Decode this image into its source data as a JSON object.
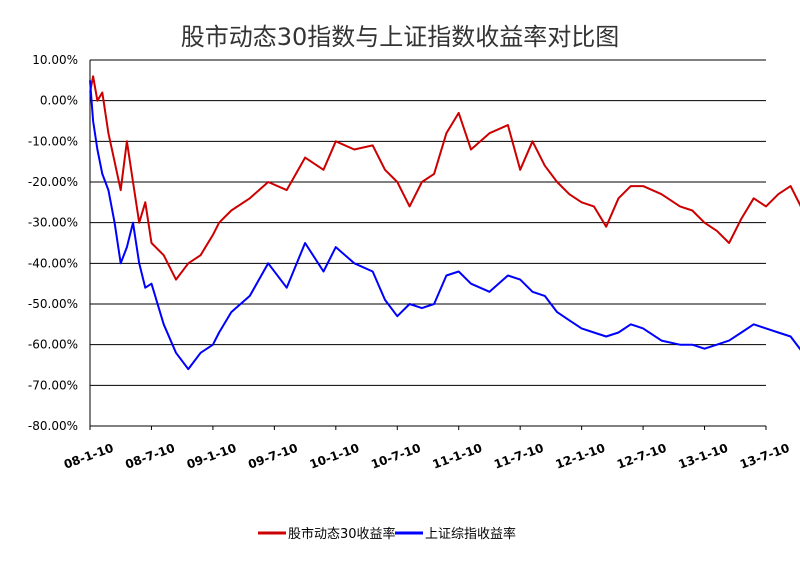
{
  "chart_data": {
    "type": "line",
    "title": "股市动态30指数与上证指数收益率对比图",
    "xlabel": "",
    "ylabel": "",
    "y_ticks": [
      "10.00%",
      "0.00%",
      "-10.00%",
      "-20.00%",
      "-30.00%",
      "-40.00%",
      "-50.00%",
      "-60.00%",
      "-70.00%",
      "-80.00%"
    ],
    "ylim": [
      -80,
      10
    ],
    "x_ticks": [
      "08-1-10",
      "08-7-10",
      "09-1-10",
      "09-7-10",
      "10-1-10",
      "10-7-10",
      "11-1-10",
      "11-7-10",
      "12-1-10",
      "12-7-10",
      "13-1-10",
      "13-7-10"
    ],
    "x_tick_index": [
      0,
      1,
      2,
      3,
      4,
      5,
      6,
      7,
      8,
      9,
      10,
      11
    ],
    "grid": "horizontal",
    "legend_position": "bottom",
    "series": [
      {
        "name": "股市动态30收益率",
        "color": "#cc0000",
        "x": [
          0,
          0.05,
          0.12,
          0.2,
          0.3,
          0.4,
          0.5,
          0.6,
          0.7,
          0.8,
          0.9,
          1.0,
          1.2,
          1.4,
          1.6,
          1.8,
          2.0,
          2.1,
          2.3,
          2.6,
          2.9,
          3.2,
          3.5,
          3.8,
          4.0,
          4.3,
          4.6,
          4.8,
          5.0,
          5.2,
          5.4,
          5.6,
          5.8,
          6.0,
          6.2,
          6.5,
          6.8,
          7.0,
          7.2,
          7.4,
          7.6,
          7.8,
          8.0,
          8.2,
          8.4,
          8.6,
          8.8,
          9.0,
          9.3,
          9.6,
          9.8,
          10.0,
          10.2,
          10.4,
          10.6,
          10.8,
          11.0,
          11.2,
          11.4,
          11.6,
          11.8,
          12.0
        ],
        "values": [
          2,
          6,
          0,
          2,
          -8,
          -15,
          -22,
          -10,
          -20,
          -30,
          -25,
          -35,
          -38,
          -44,
          -40,
          -38,
          -33,
          -30,
          -27,
          -24,
          -20,
          -22,
          -14,
          -17,
          -10,
          -12,
          -11,
          -17,
          -20,
          -26,
          -20,
          -18,
          -8,
          -3,
          -12,
          -8,
          -6,
          -17,
          -10,
          -16,
          -20,
          -23,
          -25,
          -26,
          -31,
          -24,
          -21,
          -21,
          -23,
          -26,
          -27,
          -30,
          -32,
          -35,
          -29,
          -24,
          -26,
          -23,
          -21,
          -27,
          -26,
          -23
        ]
      },
      {
        "name": "上证综指收益率",
        "color": "#0000ff",
        "x": [
          0,
          0.05,
          0.12,
          0.2,
          0.3,
          0.4,
          0.5,
          0.6,
          0.7,
          0.8,
          0.9,
          1.0,
          1.2,
          1.4,
          1.6,
          1.8,
          2.0,
          2.1,
          2.3,
          2.6,
          2.9,
          3.2,
          3.5,
          3.8,
          4.0,
          4.3,
          4.6,
          4.8,
          5.0,
          5.2,
          5.4,
          5.6,
          5.8,
          6.0,
          6.2,
          6.5,
          6.8,
          7.0,
          7.2,
          7.4,
          7.6,
          7.8,
          8.0,
          8.2,
          8.4,
          8.6,
          8.8,
          9.0,
          9.3,
          9.6,
          9.8,
          10.0,
          10.2,
          10.4,
          10.6,
          10.8,
          11.0,
          11.2,
          11.4,
          11.6,
          11.8,
          12.0
        ],
        "values": [
          5,
          -5,
          -12,
          -18,
          -22,
          -30,
          -40,
          -36,
          -30,
          -40,
          -46,
          -45,
          -55,
          -62,
          -66,
          -62,
          -60,
          -57,
          -52,
          -48,
          -40,
          -46,
          -35,
          -42,
          -36,
          -40,
          -42,
          -49,
          -53,
          -50,
          -51,
          -50,
          -43,
          -42,
          -45,
          -47,
          -43,
          -44,
          -47,
          -48,
          -52,
          -54,
          -56,
          -57,
          -58,
          -57,
          -55,
          -56,
          -59,
          -60,
          -60,
          -61,
          -60,
          -59,
          -57,
          -55,
          -56,
          -57,
          -58,
          -62,
          -61,
          -61
        ]
      }
    ]
  }
}
